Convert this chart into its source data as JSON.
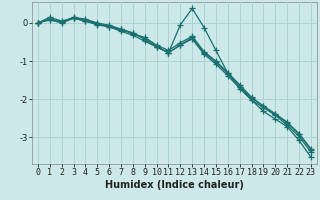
{
  "xlabel": "Humidex (Indice chaleur)",
  "background_color": "#cce8e8",
  "grid_color": "#aad0d0",
  "line_color": "#1a7070",
  "x": [
    0,
    1,
    2,
    3,
    4,
    5,
    6,
    7,
    8,
    9,
    10,
    11,
    12,
    13,
    14,
    15,
    16,
    17,
    18,
    19,
    20,
    21,
    22,
    23
  ],
  "lines": [
    [
      0.0,
      0.15,
      0.05,
      0.13,
      0.05,
      -0.05,
      -0.1,
      -0.22,
      -0.32,
      -0.48,
      -0.63,
      -0.78,
      -0.05,
      0.38,
      -0.12,
      -0.72,
      -1.32,
      -1.68,
      -2.02,
      -2.32,
      -2.52,
      -2.72,
      -3.08,
      -3.52
    ],
    [
      0.0,
      0.1,
      0.02,
      0.15,
      0.1,
      0.0,
      -0.06,
      -0.16,
      -0.26,
      -0.42,
      -0.62,
      -0.78,
      -0.58,
      -0.42,
      -0.82,
      -1.08,
      -1.38,
      -1.72,
      -2.02,
      -2.22,
      -2.42,
      -2.68,
      -2.98,
      -3.38
    ],
    [
      0.0,
      0.08,
      0.0,
      0.12,
      0.05,
      -0.03,
      -0.1,
      -0.18,
      -0.28,
      -0.38,
      -0.58,
      -0.72,
      -0.52,
      -0.35,
      -0.75,
      -1.0,
      -1.3,
      -1.62,
      -1.95,
      -2.18,
      -2.38,
      -2.6,
      -2.9,
      -3.3
    ],
    [
      0.0,
      0.1,
      0.03,
      0.13,
      0.08,
      -0.02,
      -0.08,
      -0.17,
      -0.27,
      -0.42,
      -0.62,
      -0.78,
      -0.58,
      -0.38,
      -0.78,
      -1.03,
      -1.33,
      -1.67,
      -1.97,
      -2.18,
      -2.4,
      -2.62,
      -2.92,
      -3.32
    ]
  ],
  "ylim": [
    -3.7,
    0.55
  ],
  "yticks": [
    0,
    -1,
    -2,
    -3
  ],
  "xticks": [
    0,
    1,
    2,
    3,
    4,
    5,
    6,
    7,
    8,
    9,
    10,
    11,
    12,
    13,
    14,
    15,
    16,
    17,
    18,
    19,
    20,
    21,
    22,
    23
  ],
  "marker": "+",
  "markersize": 4,
  "linewidth": 0.9,
  "xlabel_fontsize": 7,
  "tick_fontsize": 6
}
